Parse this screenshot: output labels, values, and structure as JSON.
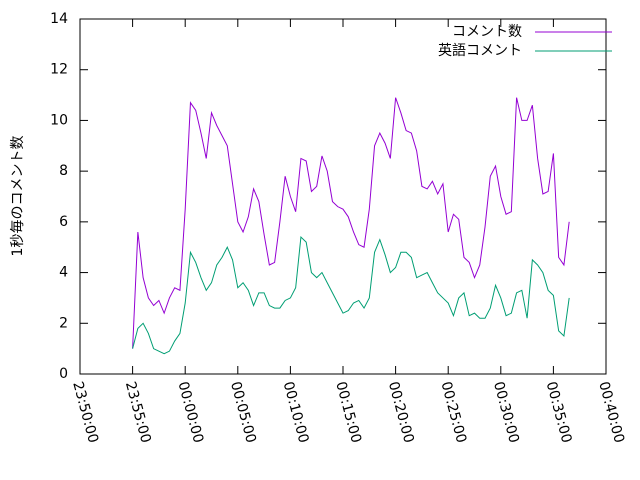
{
  "chart_data": {
    "type": "line",
    "ylabel": "1秒毎のコメント数",
    "x": [
      "23:55:00",
      "23:55:30",
      "23:56:00",
      "23:56:30",
      "23:57:00",
      "23:57:30",
      "23:58:00",
      "23:58:30",
      "23:59:00",
      "23:59:30",
      "00:00:00",
      "00:00:30",
      "00:01:00",
      "00:01:30",
      "00:02:00",
      "00:02:30",
      "00:03:00",
      "00:03:30",
      "00:04:00",
      "00:04:30",
      "00:05:00",
      "00:05:30",
      "00:06:00",
      "00:06:30",
      "00:07:00",
      "00:07:30",
      "00:08:00",
      "00:08:30",
      "00:09:00",
      "00:09:30",
      "00:10:00",
      "00:10:30",
      "00:11:00",
      "00:11:30",
      "00:12:00",
      "00:12:30",
      "00:13:00",
      "00:13:30",
      "00:14:00",
      "00:14:30",
      "00:15:00",
      "00:15:30",
      "00:16:00",
      "00:16:30",
      "00:17:00",
      "00:17:30",
      "00:18:00",
      "00:18:30",
      "00:19:00",
      "00:19:30",
      "00:20:00",
      "00:20:30",
      "00:21:00",
      "00:21:30",
      "00:22:00",
      "00:22:30",
      "00:23:00",
      "00:23:30",
      "00:24:00",
      "00:24:30",
      "00:25:00",
      "00:25:30",
      "00:26:00",
      "00:26:30",
      "00:27:00",
      "00:27:30",
      "00:28:00",
      "00:28:30",
      "00:29:00",
      "00:29:30",
      "00:30:00",
      "00:30:30",
      "00:31:00",
      "00:31:30",
      "00:32:00",
      "00:32:30",
      "00:33:00",
      "00:33:30",
      "00:34:00",
      "00:34:30",
      "00:35:00",
      "00:35:30",
      "00:36:00",
      "00:36:30"
    ],
    "series": [
      {
        "name": "コメント数",
        "color": "#9400d3",
        "values": [
          1.0,
          5.6,
          3.8,
          3.0,
          2.7,
          2.9,
          2.4,
          3.0,
          3.4,
          3.3,
          6.5,
          10.7,
          10.4,
          9.5,
          8.5,
          10.3,
          9.8,
          9.4,
          9.0,
          7.5,
          6.0,
          5.6,
          6.2,
          7.3,
          6.8,
          5.5,
          4.3,
          4.4,
          6.0,
          7.8,
          7.0,
          6.4,
          8.5,
          8.4,
          7.2,
          7.4,
          8.6,
          8.0,
          6.8,
          6.6,
          6.5,
          6.2,
          5.6,
          5.1,
          5.0,
          6.5,
          9.0,
          9.5,
          9.1,
          8.5,
          10.9,
          10.3,
          9.6,
          9.5,
          8.8,
          7.4,
          7.3,
          7.6,
          7.1,
          7.5,
          5.6,
          6.3,
          6.1,
          4.6,
          4.4,
          3.8,
          4.3,
          5.8,
          7.8,
          8.2,
          7.0,
          6.3,
          6.4,
          10.9,
          10.0,
          10.0,
          10.6,
          8.5,
          7.1,
          7.2,
          8.7,
          4.6,
          4.3,
          6.0
        ]
      },
      {
        "name": "英語コメント",
        "color": "#009e73",
        "values": [
          1.0,
          1.8,
          2.0,
          1.6,
          1.0,
          0.9,
          0.8,
          0.9,
          1.3,
          1.6,
          2.8,
          4.8,
          4.4,
          3.8,
          3.3,
          3.6,
          4.3,
          4.6,
          5.0,
          4.5,
          3.4,
          3.6,
          3.3,
          2.7,
          3.2,
          3.2,
          2.7,
          2.6,
          2.6,
          2.9,
          3.0,
          3.4,
          5.4,
          5.2,
          4.0,
          3.8,
          4.0,
          3.6,
          3.2,
          2.8,
          2.4,
          2.5,
          2.8,
          2.9,
          2.6,
          3.0,
          4.8,
          5.3,
          4.7,
          4.0,
          4.2,
          4.8,
          4.8,
          4.6,
          3.8,
          3.9,
          4.0,
          3.6,
          3.2,
          3.0,
          2.8,
          2.3,
          3.0,
          3.2,
          2.3,
          2.4,
          2.2,
          2.2,
          2.6,
          3.5,
          3.0,
          2.3,
          2.4,
          3.2,
          3.3,
          2.2,
          4.5,
          4.3,
          4.0,
          3.3,
          3.1,
          1.7,
          1.5,
          3.0
        ]
      }
    ],
    "xlim": [
      "23:50:00",
      "00:40:00"
    ],
    "xticks": [
      "23:50:00",
      "23:55:00",
      "00:00:00",
      "00:05:00",
      "00:10:00",
      "00:15:00",
      "00:20:00",
      "00:25:00",
      "00:30:00",
      "00:35:00",
      "00:40:00"
    ],
    "ylim": [
      0,
      14
    ],
    "yticks": [
      0,
      2,
      4,
      6,
      8,
      10,
      12,
      14
    ],
    "legend": "top-right"
  }
}
